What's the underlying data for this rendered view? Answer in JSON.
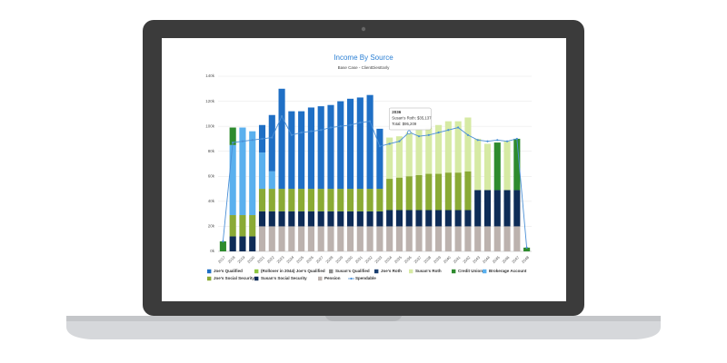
{
  "chart_data": {
    "type": "bar",
    "stacked": true,
    "title": "Income By Source",
    "subtitle": "Base Case - ClientDiesEarly",
    "categories": [
      "2017",
      "2018",
      "2019",
      "2020",
      "2021",
      "2022",
      "2023",
      "2024",
      "2025",
      "2026",
      "2027",
      "2028",
      "2029",
      "2030",
      "2031",
      "2032",
      "2033",
      "2034",
      "2035",
      "2036",
      "2037",
      "2038",
      "2039",
      "2040",
      "2041",
      "2042",
      "2043",
      "2044",
      "2045",
      "2046",
      "2047",
      "2048"
    ],
    "ylim": [
      0,
      140000
    ],
    "yticks": [
      {
        "value": 0,
        "label": "0k"
      },
      {
        "value": 20000,
        "label": "20k"
      },
      {
        "value": 40000,
        "label": "40k"
      },
      {
        "value": 60000,
        "label": "60k"
      },
      {
        "value": 80000,
        "label": "80k"
      },
      {
        "value": 100000,
        "label": "100k"
      },
      {
        "value": 120000,
        "label": "120k"
      },
      {
        "value": 140000,
        "label": "140k"
      }
    ],
    "grid": true,
    "legend": "bottom",
    "series": [
      {
        "name": "Joe's Qualified",
        "color": "#1f6fc5",
        "values": [
          null,
          null,
          null,
          null,
          22000,
          45000,
          80000,
          62000,
          62000,
          65000,
          66000,
          67000,
          70000,
          72000,
          73000,
          75000,
          48000,
          null,
          null,
          null,
          null,
          null,
          null,
          null,
          null,
          null,
          null,
          null,
          null,
          null,
          null,
          null
        ]
      },
      {
        "name": "(Rollover in 2044) Joe's Qualified",
        "color": "#8cc63f",
        "values": [
          null,
          null,
          null,
          null,
          null,
          null,
          null,
          null,
          null,
          null,
          null,
          null,
          null,
          null,
          null,
          null,
          null,
          null,
          null,
          null,
          null,
          null,
          null,
          null,
          null,
          null,
          null,
          null,
          null,
          null,
          null,
          null
        ]
      },
      {
        "name": "Susan's Qualified",
        "color": "#8c8c8c",
        "values": [
          null,
          null,
          null,
          null,
          null,
          null,
          null,
          null,
          null,
          null,
          null,
          null,
          null,
          null,
          null,
          null,
          null,
          null,
          null,
          null,
          null,
          null,
          null,
          null,
          null,
          null,
          null,
          null,
          null,
          null,
          null,
          null
        ]
      },
      {
        "name": "Joe's Roth",
        "color": "#1b3f70",
        "values": [
          null,
          null,
          null,
          null,
          null,
          null,
          null,
          null,
          null,
          null,
          null,
          null,
          null,
          null,
          null,
          null,
          null,
          null,
          null,
          null,
          null,
          null,
          null,
          null,
          null,
          null,
          null,
          null,
          null,
          null,
          null,
          null
        ]
      },
      {
        "name": "Susan's Roth",
        "color": "#d6eaa4",
        "values": [
          null,
          null,
          null,
          null,
          null,
          null,
          null,
          null,
          null,
          null,
          null,
          null,
          null,
          null,
          null,
          null,
          null,
          33000,
          33000,
          35137,
          36000,
          37000,
          39000,
          41000,
          41000,
          43000,
          41000,
          37000,
          null,
          39000,
          null,
          null
        ]
      },
      {
        "name": "Credit Union",
        "color": "#2e8b2e",
        "values": [
          8000,
          14000,
          null,
          null,
          null,
          null,
          null,
          null,
          null,
          null,
          null,
          null,
          null,
          null,
          null,
          null,
          null,
          null,
          null,
          null,
          null,
          null,
          null,
          null,
          null,
          null,
          null,
          null,
          38000,
          null,
          41000,
          3000
        ]
      },
      {
        "name": "Brokerage Account",
        "color": "#5ab0ee",
        "values": [
          null,
          56000,
          70000,
          67000,
          29000,
          14000,
          null,
          null,
          null,
          null,
          null,
          null,
          null,
          null,
          null,
          null,
          null,
          null,
          null,
          null,
          null,
          null,
          null,
          null,
          null,
          null,
          null,
          null,
          null,
          null,
          null,
          null
        ]
      },
      {
        "name": "Joe's Social Security",
        "color": "#8aaa35",
        "values": [
          null,
          17000,
          17000,
          17000,
          18000,
          18000,
          18000,
          18000,
          18000,
          18000,
          18000,
          18000,
          18000,
          18000,
          18000,
          18000,
          18000,
          25000,
          26000,
          27072,
          28000,
          29000,
          29000,
          30000,
          30000,
          31000,
          null,
          null,
          null,
          null,
          null,
          null
        ]
      },
      {
        "name": "Susan's Social Security",
        "color": "#0e2c57",
        "values": [
          null,
          12000,
          12000,
          12000,
          12000,
          12000,
          12000,
          12000,
          12000,
          12000,
          12000,
          12000,
          12000,
          12000,
          12000,
          12000,
          12000,
          13000,
          13000,
          13000,
          13000,
          13000,
          13000,
          13000,
          13000,
          13000,
          29000,
          29000,
          29000,
          29000,
          29000,
          null
        ]
      },
      {
        "name": "Pension",
        "color": "#bcb2ae",
        "values": [
          null,
          null,
          null,
          null,
          20000,
          20000,
          20000,
          20000,
          20000,
          20000,
          20000,
          20000,
          20000,
          20000,
          20000,
          20000,
          20000,
          20000,
          20000,
          20000,
          20000,
          20000,
          20000,
          20000,
          20000,
          20000,
          20000,
          20000,
          20000,
          20000,
          20000,
          null
        ]
      },
      {
        "name": "Spendable",
        "color": "#4a8fd6",
        "type": "line",
        "values": [
          8000,
          87000,
          88000,
          89000,
          90000,
          91000,
          108000,
          93000,
          95000,
          96000,
          97000,
          99000,
          100000,
          101000,
          103000,
          104000,
          84000,
          86000,
          88000,
          95209,
          92000,
          93000,
          95000,
          97000,
          99000,
          93000,
          89000,
          88000,
          89000,
          88000,
          90000,
          3000
        ]
      }
    ],
    "tooltip": {
      "category": "2036",
      "line1": "Susan's Roth: $35,137",
      "line2": "Total: $95,209"
    }
  }
}
